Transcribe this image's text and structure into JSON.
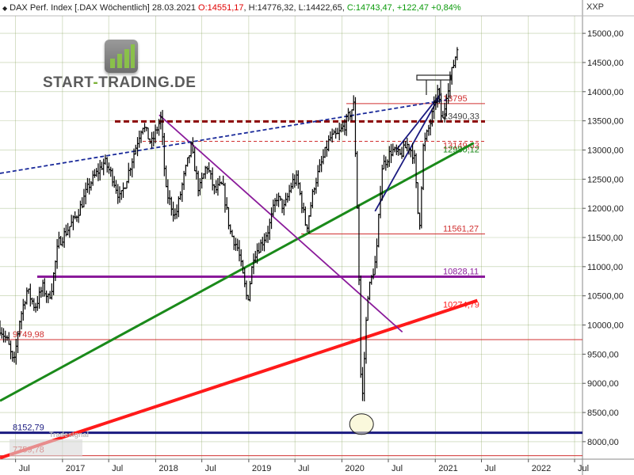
{
  "header": {
    "title": "DAX Perf. Index [.DAX",
    "period": "Wöchentlich] 28.03.2021",
    "open": "O:14551,17",
    "high": "H:14776,32",
    "low": "L:14422,65",
    "close": "C:14743,47",
    "change": "+122,47",
    "change_pct": "+0,84%"
  },
  "logo": {
    "brand": "START",
    "dash": "-",
    "brand2": "TRADING.DE"
  },
  "watermark": "Tradesignal",
  "colors": {
    "red_line": "#ff1a1a",
    "green_line": "#1a8a1a",
    "purple_line": "#8a1a9a",
    "navy_line": "#1a1a80",
    "dark_red_dashed": "#8b0000",
    "blue_dashed": "#1a2a9a",
    "thin_red": "#d03030",
    "price_bars": "#000000",
    "grid": "#7a9a4a"
  },
  "chart_data": {
    "type": "line",
    "title": "DAX Perf. Index [.DAX Wöchentlich]",
    "ylabel": "XXP",
    "ylim": [
      7700,
      15300
    ],
    "yticks": [
      8000,
      8500,
      9000,
      9500,
      10000,
      10500,
      11000,
      11500,
      12000,
      12500,
      13000,
      13500,
      14000,
      14500,
      15000
    ],
    "ytick_labels": [
      "8000,00",
      "8500,00",
      "9000,00",
      "9500,00",
      "10000,00",
      "10500,00",
      "11000,00",
      "11500,00",
      "12000,00",
      "12500,00",
      "13000,00",
      "13500,00",
      "14000,00",
      "14500,00",
      "15000,00"
    ],
    "xlim": [
      "2016-05-01",
      "2022-08-01"
    ],
    "xticks": [
      {
        "date": "2016-07-01",
        "label": "Jul"
      },
      {
        "date": "2017-01-01",
        "label": "2017"
      },
      {
        "date": "2017-07-01",
        "label": "Jul"
      },
      {
        "date": "2018-01-01",
        "label": "2018"
      },
      {
        "date": "2018-07-01",
        "label": "Jul"
      },
      {
        "date": "2019-01-01",
        "label": "2019"
      },
      {
        "date": "2019-07-01",
        "label": "Jul"
      },
      {
        "date": "2020-01-01",
        "label": "2020"
      },
      {
        "date": "2020-07-01",
        "label": "Jul"
      },
      {
        "date": "2021-01-01",
        "label": "2021"
      },
      {
        "date": "2021-07-01",
        "label": "Jul"
      },
      {
        "date": "2022-01-01",
        "label": "2022"
      },
      {
        "date": "2022-07-01",
        "label": "Jul"
      }
    ],
    "grid": true,
    "price_series": [
      [
        "2016-05-01",
        9950
      ],
      [
        "2016-06-01",
        9700
      ],
      [
        "2016-06-24",
        9300
      ],
      [
        "2016-07-15",
        10050
      ],
      [
        "2016-08-15",
        10600
      ],
      [
        "2016-09-15",
        10300
      ],
      [
        "2016-10-15",
        10650
      ],
      [
        "2016-11-07",
        10450
      ],
      [
        "2016-11-20",
        10650
      ],
      [
        "2016-12-15",
        11400
      ],
      [
        "2017-01-15",
        11600
      ],
      [
        "2017-02-15",
        11800
      ],
      [
        "2017-03-15",
        12050
      ],
      [
        "2017-04-15",
        12400
      ],
      [
        "2017-05-15",
        12600
      ],
      [
        "2017-06-15",
        12800
      ],
      [
        "2017-07-15",
        12550
      ],
      [
        "2017-08-15",
        12150
      ],
      [
        "2017-09-15",
        12600
      ],
      [
        "2017-10-15",
        13050
      ],
      [
        "2017-11-10",
        13450
      ],
      [
        "2017-12-15",
        13100
      ],
      [
        "2018-01-22",
        13550
      ],
      [
        "2018-02-10",
        12300
      ],
      [
        "2018-03-20",
        11850
      ],
      [
        "2018-04-20",
        12500
      ],
      [
        "2018-05-20",
        13050
      ],
      [
        "2018-06-20",
        12300
      ],
      [
        "2018-07-20",
        12750
      ],
      [
        "2018-08-20",
        12300
      ],
      [
        "2018-09-20",
        12400
      ],
      [
        "2018-10-20",
        11600
      ],
      [
        "2018-11-20",
        11300
      ],
      [
        "2018-12-27",
        10400
      ],
      [
        "2019-01-20",
        11200
      ],
      [
        "2019-02-20",
        11400
      ],
      [
        "2019-03-20",
        11650
      ],
      [
        "2019-04-20",
        12200
      ],
      [
        "2019-05-20",
        12000
      ],
      [
        "2019-06-20",
        12450
      ],
      [
        "2019-07-10",
        12500
      ],
      [
        "2019-08-15",
        11650
      ],
      [
        "2019-09-15",
        12400
      ],
      [
        "2019-10-15",
        12800
      ],
      [
        "2019-11-15",
        13200
      ],
      [
        "2019-12-15",
        13250
      ],
      [
        "2020-01-15",
        13450
      ],
      [
        "2020-02-17",
        13780
      ],
      [
        "2020-03-05",
        11500
      ],
      [
        "2020-03-18",
        8450
      ],
      [
        "2020-04-10",
        10500
      ],
      [
        "2020-05-15",
        11150
      ],
      [
        "2020-06-05",
        12700
      ],
      [
        "2020-07-15",
        13000
      ],
      [
        "2020-08-15",
        12900
      ],
      [
        "2020-09-15",
        13100
      ],
      [
        "2020-10-10",
        12900
      ],
      [
        "2020-10-30",
        11600
      ],
      [
        "2020-11-15",
        13050
      ],
      [
        "2020-12-15",
        13500
      ],
      [
        "2021-01-10",
        14000
      ],
      [
        "2021-01-29",
        13450
      ],
      [
        "2021-02-15",
        14000
      ],
      [
        "2021-03-05",
        14300
      ],
      [
        "2021-03-28",
        14743
      ]
    ],
    "levels": [
      {
        "label": "13795",
        "value": 13795,
        "style": "thin-red"
      },
      {
        "label": "13490,33",
        "value": 13490,
        "style": "dark-red-dashed"
      },
      {
        "label": "13149,63",
        "value": 13149,
        "style": "thin-red-dashed"
      },
      {
        "label": "11561,27",
        "value": 11561,
        "style": "thin-red"
      },
      {
        "label": "10828,11",
        "value": 10828,
        "style": "purple"
      },
      {
        "label": "9749,98",
        "value": 9750,
        "style": "thin-red"
      },
      {
        "label": "8152,79",
        "value": 8153,
        "style": "navy"
      },
      {
        "label": "7759,78",
        "value": 7760,
        "style": "thin-red"
      }
    ],
    "trendlines": [
      {
        "label": "12980,12",
        "color": "green",
        "from": [
          "2016-05-01",
          8700
        ],
        "to": [
          "2021-06-01",
          13120
        ]
      },
      {
        "label": "10274,79",
        "color": "red",
        "from": [
          "2016-05-01",
          7720
        ],
        "to": [
          "2021-06-15",
          10420
        ]
      },
      {
        "label": "",
        "color": "purple",
        "from": [
          "2018-01-15",
          13600
        ],
        "to": [
          "2020-08-25",
          9880
        ]
      },
      {
        "label": "",
        "color": "blue-dashed",
        "from": [
          "2016-05-01",
          12600
        ],
        "to": [
          "2021-02-15",
          13860
        ]
      },
      {
        "label": "",
        "color": "navy",
        "from": [
          "2020-05-10",
          11950
        ],
        "to": [
          "2021-01-15",
          13900
        ]
      },
      {
        "label": "",
        "color": "navy",
        "from": [
          "2020-08-01",
          13000
        ],
        "to": [
          "2021-01-20",
          13950
        ]
      }
    ]
  }
}
